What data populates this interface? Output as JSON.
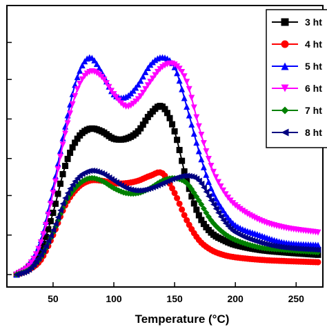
{
  "chart_data": {
    "type": "line",
    "xlabel": "Temperature (°C)",
    "ylabel": "",
    "xlim": [
      12,
      272
    ],
    "ylim": [
      0,
      100
    ],
    "x_ticks": [
      50,
      100,
      150,
      200,
      250
    ],
    "y_ticks": [
      0,
      16,
      32,
      47,
      63,
      79,
      94
    ],
    "grid": false,
    "legend_position": "top-right",
    "series": [
      {
        "name": "3 ht",
        "color": "#000000",
        "marker": "square",
        "points": [
          [
            20,
            0
          ],
          [
            30,
            3
          ],
          [
            40,
            10
          ],
          [
            50,
            25
          ],
          [
            60,
            44
          ],
          [
            70,
            55
          ],
          [
            80,
            59
          ],
          [
            90,
            58
          ],
          [
            100,
            55
          ],
          [
            110,
            55
          ],
          [
            120,
            58
          ],
          [
            130,
            65
          ],
          [
            140,
            68
          ],
          [
            150,
            58
          ],
          [
            160,
            38
          ],
          [
            170,
            24
          ],
          [
            180,
            17
          ],
          [
            190,
            14
          ],
          [
            200,
            12
          ],
          [
            220,
            10
          ],
          [
            240,
            9
          ],
          [
            268,
            8
          ]
        ]
      },
      {
        "name": "4 ht",
        "color": "#ff0000",
        "marker": "circle",
        "points": [
          [
            20,
            0
          ],
          [
            30,
            2
          ],
          [
            40,
            6
          ],
          [
            50,
            16
          ],
          [
            60,
            28
          ],
          [
            70,
            35
          ],
          [
            80,
            38
          ],
          [
            90,
            38
          ],
          [
            100,
            37
          ],
          [
            110,
            37
          ],
          [
            120,
            38
          ],
          [
            130,
            40
          ],
          [
            140,
            41
          ],
          [
            150,
            33
          ],
          [
            160,
            22
          ],
          [
            170,
            14
          ],
          [
            180,
            10
          ],
          [
            190,
            8
          ],
          [
            200,
            7
          ],
          [
            220,
            6
          ],
          [
            240,
            5.5
          ],
          [
            268,
            5
          ]
        ]
      },
      {
        "name": "5 ht",
        "color": "#0000ff",
        "marker": "triangle-up",
        "points": [
          [
            20,
            0
          ],
          [
            30,
            4
          ],
          [
            40,
            14
          ],
          [
            50,
            35
          ],
          [
            60,
            60
          ],
          [
            70,
            80
          ],
          [
            80,
            88
          ],
          [
            90,
            82
          ],
          [
            100,
            73
          ],
          [
            110,
            72
          ],
          [
            120,
            77
          ],
          [
            130,
            85
          ],
          [
            140,
            88
          ],
          [
            150,
            84
          ],
          [
            160,
            68
          ],
          [
            170,
            50
          ],
          [
            180,
            35
          ],
          [
            190,
            26
          ],
          [
            200,
            20
          ],
          [
            220,
            16
          ],
          [
            240,
            13
          ],
          [
            268,
            12
          ]
        ]
      },
      {
        "name": "6 ht",
        "color": "#ff00ff",
        "marker": "triangle-down",
        "points": [
          [
            20,
            0
          ],
          [
            30,
            3.5
          ],
          [
            40,
            13
          ],
          [
            50,
            33
          ],
          [
            60,
            57
          ],
          [
            70,
            75
          ],
          [
            80,
            82
          ],
          [
            90,
            80
          ],
          [
            100,
            73
          ],
          [
            110,
            68
          ],
          [
            120,
            71
          ],
          [
            130,
            78
          ],
          [
            140,
            84
          ],
          [
            150,
            85
          ],
          [
            160,
            78
          ],
          [
            170,
            60
          ],
          [
            180,
            44
          ],
          [
            190,
            34
          ],
          [
            200,
            28
          ],
          [
            220,
            22
          ],
          [
            240,
            19
          ],
          [
            268,
            17
          ]
        ]
      },
      {
        "name": "7 ht",
        "color": "#008000",
        "marker": "diamond",
        "points": [
          [
            20,
            0
          ],
          [
            30,
            2
          ],
          [
            40,
            7
          ],
          [
            50,
            17
          ],
          [
            60,
            29
          ],
          [
            70,
            36
          ],
          [
            80,
            39
          ],
          [
            90,
            38
          ],
          [
            100,
            35
          ],
          [
            110,
            33
          ],
          [
            120,
            33
          ],
          [
            130,
            35
          ],
          [
            140,
            38
          ],
          [
            150,
            39
          ],
          [
            160,
            37
          ],
          [
            170,
            30
          ],
          [
            180,
            22
          ],
          [
            190,
            17
          ],
          [
            200,
            14
          ],
          [
            220,
            11
          ],
          [
            240,
            10
          ],
          [
            268,
            9
          ]
        ]
      },
      {
        "name": "8 ht",
        "color": "#000080",
        "marker": "triangle-left",
        "points": [
          [
            20,
            0
          ],
          [
            30,
            2
          ],
          [
            40,
            8
          ],
          [
            50,
            18
          ],
          [
            60,
            31
          ],
          [
            70,
            39
          ],
          [
            80,
            42
          ],
          [
            90,
            41
          ],
          [
            100,
            38
          ],
          [
            110,
            35
          ],
          [
            120,
            34
          ],
          [
            130,
            35
          ],
          [
            140,
            37
          ],
          [
            150,
            39
          ],
          [
            160,
            40
          ],
          [
            170,
            38
          ],
          [
            180,
            30
          ],
          [
            190,
            22
          ],
          [
            200,
            17
          ],
          [
            220,
            13
          ],
          [
            240,
            11
          ],
          [
            268,
            10
          ]
        ]
      }
    ]
  }
}
